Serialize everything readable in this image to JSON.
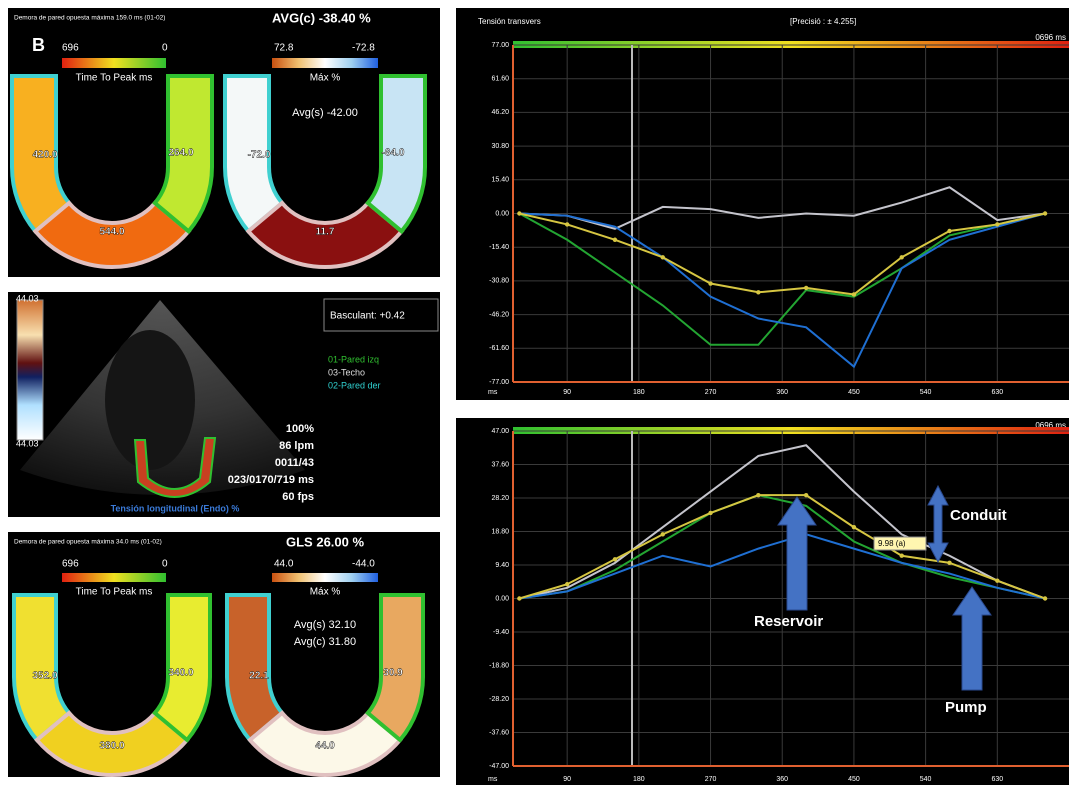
{
  "bullseye_top": {
    "header": "Demora de pared opuesta máxima 159.0 ms (01-02)",
    "title": "AVG(c) -38.40 %",
    "label": "B",
    "ttp_scale": [
      "696",
      "0"
    ],
    "ttp_title": "Time To Peak ms",
    "strain_scale": [
      "72.8",
      "-72.8"
    ],
    "strain_title": "Máx %",
    "averages": [
      "Avg(s) -42.00"
    ],
    "ttp_segments": [
      "420.0",
      "544.0",
      "264.0"
    ],
    "strain_segments": [
      "-72.0",
      "11.7",
      "-64.0"
    ]
  },
  "echo": {
    "scale": [
      "44.03",
      "44.03"
    ],
    "tilt": "Basculant: +0.42",
    "info": [
      "100%",
      "86 lpm",
      "0011/43",
      "023/0170/719 ms",
      "60 fps"
    ],
    "caption": "Tensión longitudinal (Endo) %"
  },
  "bullseye_bottom": {
    "header": "Demora de pared opuesta máxima 34.0 ms (01-02)",
    "title": "GLS 26.00 %",
    "ttp_scale": [
      "696",
      "0"
    ],
    "ttp_title": "Time To Peak ms",
    "strain_scale": [
      "44.0",
      "-44.0"
    ],
    "strain_title": "Máx %",
    "averages": [
      "Avg(s) 32.10",
      "Avg(c) 31.80"
    ],
    "ttp_segments": [
      "352.0",
      "380.0",
      "340.0"
    ],
    "strain_segments": [
      "22.1",
      "44.0",
      "30.9"
    ]
  },
  "chart_data": [
    {
      "type": "line",
      "title": "Tensión transvers",
      "subtitle": "[Precisió : ± 4.255]",
      "annotations": [
        "0696 ms"
      ],
      "x_label": "ms",
      "x": [
        30,
        90,
        150,
        210,
        270,
        330,
        390,
        450,
        510,
        570,
        630,
        690
      ],
      "series": [
        {
          "name": "01-Pared izq",
          "color": "#23a532",
          "values": [
            0,
            -12,
            -27,
            -42,
            -60,
            -60,
            -35,
            -38,
            -25,
            -10,
            -5,
            0
          ]
        },
        {
          "name": "03-Techo",
          "color": "#c4c4cc",
          "values": [
            0,
            -1,
            -7,
            3,
            2,
            -2,
            0,
            -1,
            5,
            12,
            -3,
            0
          ]
        },
        {
          "name": "02-Pared der",
          "color": "#1f6fd2",
          "values": [
            0,
            -1,
            -6,
            -20,
            -38,
            -48,
            -52,
            -70,
            -25,
            -12,
            -6,
            0
          ]
        },
        {
          "color": "#d6c642",
          "markers": true,
          "values": [
            0,
            -5,
            -12,
            -20,
            -32,
            -36,
            -34,
            -37,
            -20,
            -8,
            -5,
            0
          ]
        }
      ],
      "xlim": [
        22,
        720
      ],
      "xticks": [
        90,
        180,
        270,
        360,
        450,
        540,
        630
      ],
      "ylim": [
        -77,
        77
      ],
      "yticks": [
        {
          "value": 77,
          "label": "77.00"
        },
        {
          "value": 61.6,
          "label": "61.60"
        },
        {
          "value": 46.2,
          "label": "46.20"
        },
        {
          "value": 30.8,
          "label": "30.80"
        },
        {
          "value": 15.4,
          "label": "15.40"
        },
        {
          "value": 0,
          "label": "0.00"
        },
        {
          "value": -15.4,
          "label": "-15.40"
        },
        {
          "value": -30.8,
          "label": "-30.80"
        },
        {
          "value": -46.2,
          "label": "-46.20"
        },
        {
          "value": -61.6,
          "label": "-61.60"
        },
        {
          "value": -77,
          "label": "-77.00"
        }
      ],
      "grid": true
    },
    {
      "type": "line",
      "annotations": [
        "0696 ms",
        "Reservoir",
        "Conduit",
        "Pump",
        "9.98 (a)"
      ],
      "x_label": "ms",
      "x": [
        30,
        90,
        150,
        210,
        270,
        330,
        390,
        450,
        510,
        570,
        630,
        690
      ],
      "series": [
        {
          "color": "#23a532",
          "values": [
            0,
            2,
            8,
            16,
            24,
            29,
            26,
            16,
            10,
            6,
            3,
            0
          ]
        },
        {
          "color": "#c4c4cc",
          "values": [
            0,
            3,
            10,
            20,
            30,
            40,
            43,
            30,
            18,
            12,
            5,
            0
          ]
        },
        {
          "color": "#1f6fd2",
          "values": [
            0,
            2,
            7,
            12,
            9,
            14,
            18,
            14,
            10,
            7,
            3,
            0
          ]
        },
        {
          "color": "#d6c642",
          "markers": true,
          "values": [
            0,
            4,
            11,
            18,
            24,
            29,
            29,
            20,
            12,
            10,
            5,
            0
          ]
        }
      ],
      "xlim": [
        22,
        720
      ],
      "xticks": [
        90,
        180,
        270,
        360,
        450,
        540,
        630
      ],
      "ylim": [
        -47,
        47
      ],
      "yticks": [
        {
          "value": 47,
          "label": "47.00"
        },
        {
          "value": 37.6,
          "label": "37.60"
        },
        {
          "value": 28.2,
          "label": "28.20"
        },
        {
          "value": 18.8,
          "label": "18.80"
        },
        {
          "value": 9.4,
          "label": "9.40"
        },
        {
          "value": 0,
          "label": "0.00"
        },
        {
          "value": -9.4,
          "label": "-9.40"
        },
        {
          "value": -18.8,
          "label": "-18.80"
        },
        {
          "value": -28.2,
          "label": "-28.20"
        },
        {
          "value": -37.6,
          "label": "-37.60"
        },
        {
          "value": -47,
          "label": "-47.00"
        }
      ],
      "grid": true
    }
  ]
}
